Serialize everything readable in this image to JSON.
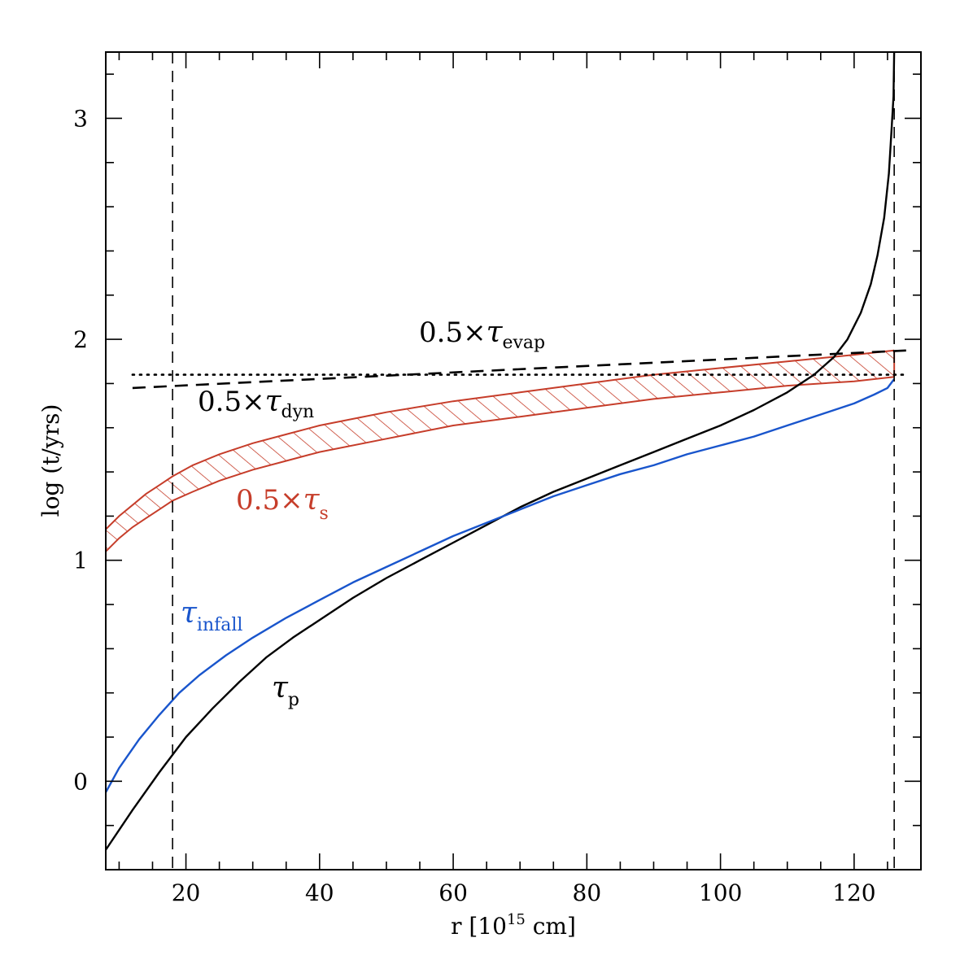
{
  "chart_data": {
    "type": "line",
    "title": "",
    "xlabel": "r [10",
    "xlabel_sup": "15",
    "xlabel_unit": " cm]",
    "ylabel": "log (t/yrs)",
    "xlim": [
      8,
      130
    ],
    "ylim": [
      -0.4,
      3.3
    ],
    "x_ticks": [
      20,
      40,
      60,
      80,
      100,
      120
    ],
    "y_ticks": [
      0,
      1,
      2,
      3
    ],
    "x_tick_labels": [
      "20",
      "40",
      "60",
      "80",
      "100",
      "120"
    ],
    "y_tick_labels": [
      "0",
      "1",
      "2",
      "3"
    ],
    "vlines": [
      18,
      126
    ],
    "series": [
      {
        "name": "tau_p",
        "color": "#000000",
        "style": "solid",
        "x": [
          8,
          12,
          16,
          20,
          24,
          28,
          32,
          36,
          40,
          45,
          50,
          55,
          60,
          65,
          70,
          75,
          80,
          85,
          90,
          95,
          100,
          105,
          110,
          114,
          117,
          119,
          121,
          122.5,
          123.5,
          124.5,
          125.2,
          125.6,
          125.9,
          126
        ],
        "y": [
          -0.31,
          -0.13,
          0.04,
          0.2,
          0.33,
          0.45,
          0.56,
          0.65,
          0.73,
          0.83,
          0.92,
          1.0,
          1.08,
          1.16,
          1.24,
          1.31,
          1.37,
          1.43,
          1.49,
          1.55,
          1.61,
          1.68,
          1.76,
          1.84,
          1.92,
          2.0,
          2.12,
          2.25,
          2.38,
          2.55,
          2.75,
          2.95,
          3.1,
          3.3
        ]
      },
      {
        "name": "tau_infall",
        "color": "#1955cc",
        "style": "solid",
        "x": [
          8,
          10,
          13,
          16,
          19,
          22,
          26,
          30,
          35,
          40,
          45,
          50,
          55,
          60,
          65,
          70,
          75,
          80,
          85,
          90,
          95,
          100,
          105,
          110,
          115,
          120,
          123,
          125,
          126
        ],
        "y": [
          -0.05,
          0.06,
          0.19,
          0.3,
          0.4,
          0.48,
          0.57,
          0.65,
          0.74,
          0.82,
          0.9,
          0.97,
          1.04,
          1.11,
          1.17,
          1.23,
          1.29,
          1.34,
          1.39,
          1.43,
          1.48,
          1.52,
          1.56,
          1.61,
          1.66,
          1.71,
          1.75,
          1.78,
          1.82
        ]
      },
      {
        "name": "tau_evap_0.5",
        "color": "#000000",
        "style": "dashed",
        "x": [
          12,
          128
        ],
        "y": [
          1.78,
          1.95
        ]
      },
      {
        "name": "tau_dyn_0.5",
        "color": "#000000",
        "style": "dotted",
        "x": [
          12,
          128
        ],
        "y": [
          1.84,
          1.84
        ]
      }
    ],
    "band": {
      "name": "tau_s_0.5",
      "color": "#c63d2a",
      "fill": "hatched",
      "x": [
        8,
        10,
        12,
        14,
        16,
        18,
        21,
        25,
        30,
        35,
        40,
        50,
        60,
        70,
        80,
        90,
        100,
        110,
        120,
        126
      ],
      "upper": [
        1.14,
        1.2,
        1.25,
        1.3,
        1.34,
        1.38,
        1.43,
        1.48,
        1.53,
        1.57,
        1.61,
        1.67,
        1.72,
        1.76,
        1.8,
        1.84,
        1.87,
        1.9,
        1.93,
        1.95
      ],
      "lower": [
        1.04,
        1.1,
        1.15,
        1.19,
        1.23,
        1.27,
        1.31,
        1.36,
        1.41,
        1.45,
        1.49,
        1.55,
        1.61,
        1.65,
        1.69,
        1.73,
        1.76,
        1.79,
        1.81,
        1.83
      ]
    },
    "annotations": [
      {
        "id": "evap",
        "prefix": "0.5×",
        "greek": "τ",
        "sub": "evap",
        "color": "#000000"
      },
      {
        "id": "dyn",
        "prefix": "0.5×",
        "greek": "τ",
        "sub": "dyn",
        "color": "#000000"
      },
      {
        "id": "s",
        "prefix": "0.5×",
        "greek": "τ",
        "sub": "s",
        "color": "#c63d2a"
      },
      {
        "id": "infall",
        "prefix": "",
        "greek": "τ",
        "sub": "infall",
        "color": "#1955cc"
      },
      {
        "id": "p",
        "prefix": "",
        "greek": "τ",
        "sub": "p",
        "color": "#000000"
      }
    ]
  }
}
